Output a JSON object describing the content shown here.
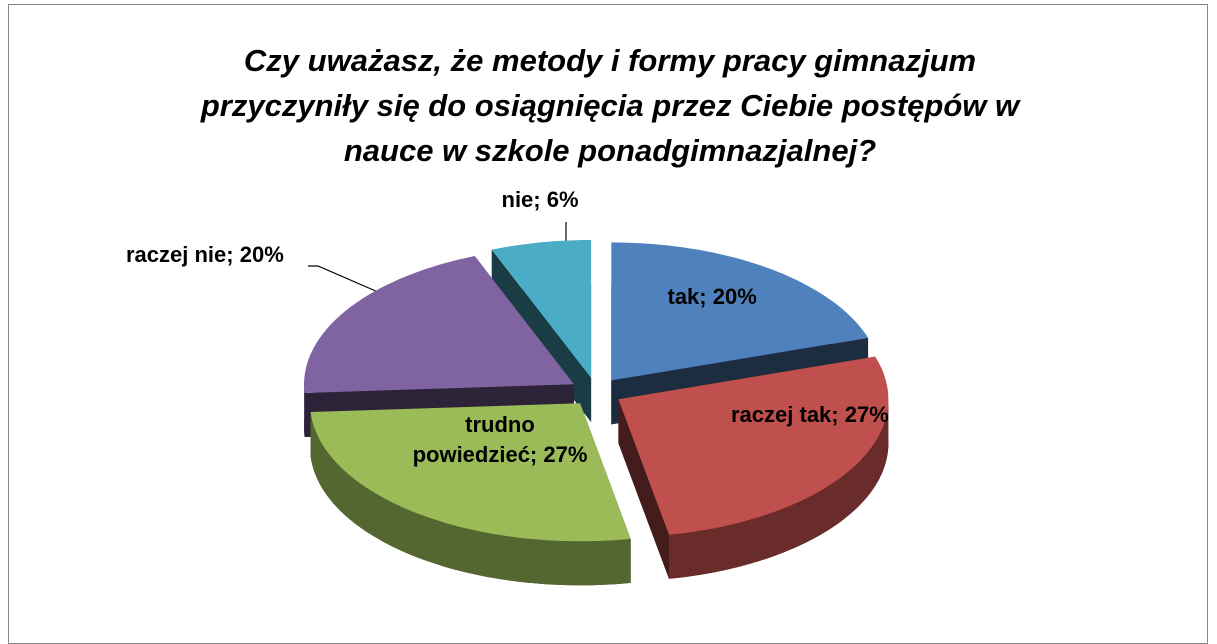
{
  "chart_data": {
    "type": "pie",
    "title": "Czy uważasz, że metody i formy pracy gimnazjum przyczyniły się do osiągnięcia przez Ciebie postępów w nauce w szkole ponadgimnazjalnej?",
    "values": [
      20,
      27,
      27,
      20,
      6
    ],
    "value_labels": [
      "tak; 20%",
      "raczej tak; 27%",
      "trudno powiedzieć; 27%",
      "raczej nie; 20%",
      "nie; 6%"
    ],
    "colors": [
      "#4f81bd",
      "#c0504d",
      "#9bbb59",
      "#8064a2",
      "#4bacc6"
    ]
  }
}
